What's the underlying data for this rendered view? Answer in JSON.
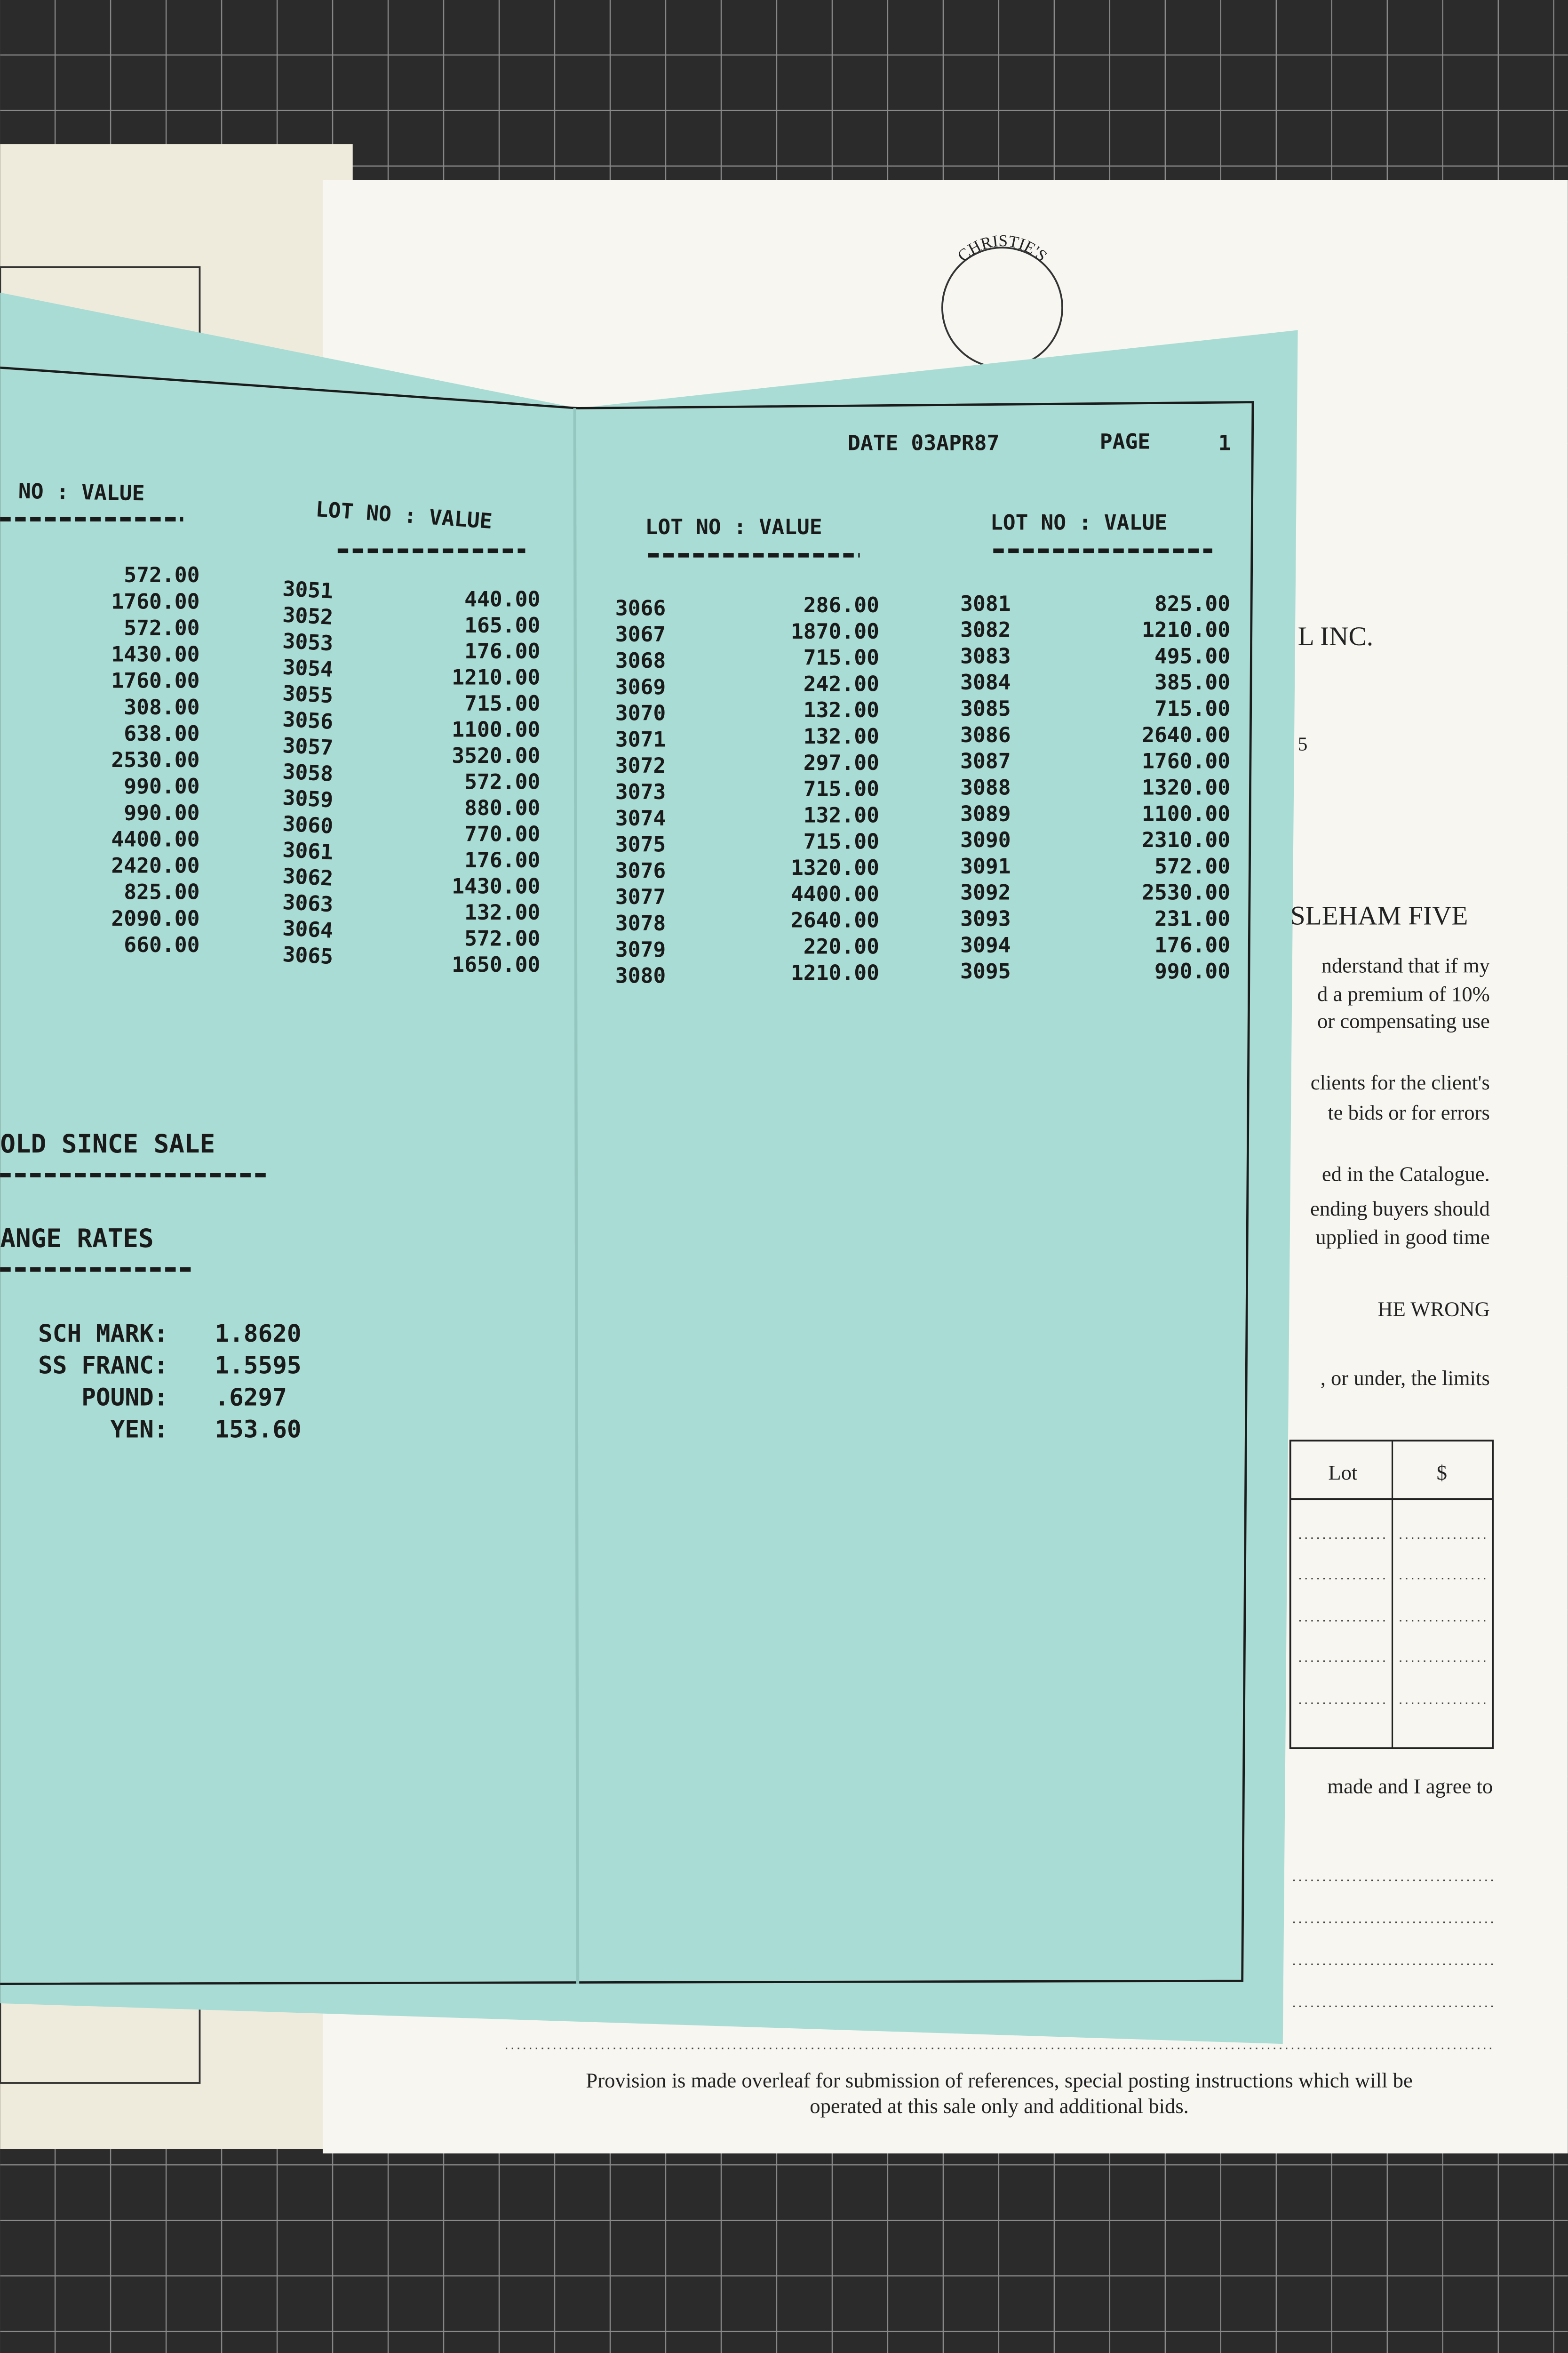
{
  "background_form": {
    "logo": "CHRISTIE'S",
    "heading_fragment": "L INC.",
    "number_fragment": "5",
    "sale_fragment": "SLEHAM FIVE",
    "paragraph_fragments": [
      "nderstand that if my",
      "d a premium of 10%",
      "or compensating use",
      "clients for the client's",
      "te bids or for errors",
      "ed in the Catalogue.",
      "ending buyers should",
      "upplied in good time",
      "HE WRONG",
      ", or under, the limits"
    ],
    "bid_table": {
      "headers": [
        "Lot",
        "$"
      ]
    },
    "agree_fragment": "made and I agree to",
    "footer": [
      "Provision is made overleaf for submission of references, special posting instructions which will be",
      "operated at this sale only and additional bids."
    ]
  },
  "report": {
    "date": "DATE 03APR87",
    "page_label": "PAGE",
    "page_number": "1",
    "columns": [
      {
        "header": "NO : VALUE",
        "lots": [],
        "values": [
          "572.00",
          "1760.00",
          "572.00",
          "1430.00",
          "1760.00",
          "308.00",
          "638.00",
          "2530.00",
          "990.00",
          "990.00",
          "4400.00",
          "2420.00",
          "825.00",
          "2090.00",
          "660.00"
        ]
      },
      {
        "header": "LOT NO : VALUE",
        "lots": [
          "3051",
          "3052",
          "3053",
          "3054",
          "3055",
          "3056",
          "3057",
          "3058",
          "3059",
          "3060",
          "3061",
          "3062",
          "3063",
          "3064",
          "3065"
        ],
        "values": [
          "440.00",
          "165.00",
          "176.00",
          "1210.00",
          "715.00",
          "1100.00",
          "3520.00",
          "572.00",
          "880.00",
          "770.00",
          "176.00",
          "1430.00",
          "132.00",
          "572.00",
          "1650.00"
        ]
      },
      {
        "header": "LOT NO : VALUE",
        "lots": [
          "3066",
          "3067",
          "3068",
          "3069",
          "3070",
          "3071",
          "3072",
          "3073",
          "3074",
          "3075",
          "3076",
          "3077",
          "3078",
          "3079",
          "3080"
        ],
        "values": [
          "286.00",
          "1870.00",
          "715.00",
          "242.00",
          "132.00",
          "132.00",
          "297.00",
          "715.00",
          "132.00",
          "715.00",
          "1320.00",
          "4400.00",
          "2640.00",
          "220.00",
          "1210.00"
        ]
      },
      {
        "header": "LOT NO : VALUE",
        "lots": [
          "3081",
          "3082",
          "3083",
          "3084",
          "3085",
          "3086",
          "3087",
          "3088",
          "3089",
          "3090",
          "3091",
          "3092",
          "3093",
          "3094",
          "3095"
        ],
        "values": [
          "825.00",
          "1210.00",
          "495.00",
          "385.00",
          "715.00",
          "2640.00",
          "1760.00",
          "1320.00",
          "1100.00",
          "2310.00",
          "572.00",
          "2530.00",
          "231.00",
          "176.00",
          "990.00"
        ]
      }
    ],
    "sold_since_sale": "OLD SINCE SALE",
    "exchange_rates": {
      "title": "ANGE RATES",
      "rows": [
        {
          "label": "SCH MARK:",
          "rate": "1.8620"
        },
        {
          "label": "SS FRANC:",
          "rate": "1.5595"
        },
        {
          "label": "POUND:",
          "rate": ".6297"
        },
        {
          "label": "YEN:",
          "rate": "153.60"
        }
      ]
    }
  }
}
